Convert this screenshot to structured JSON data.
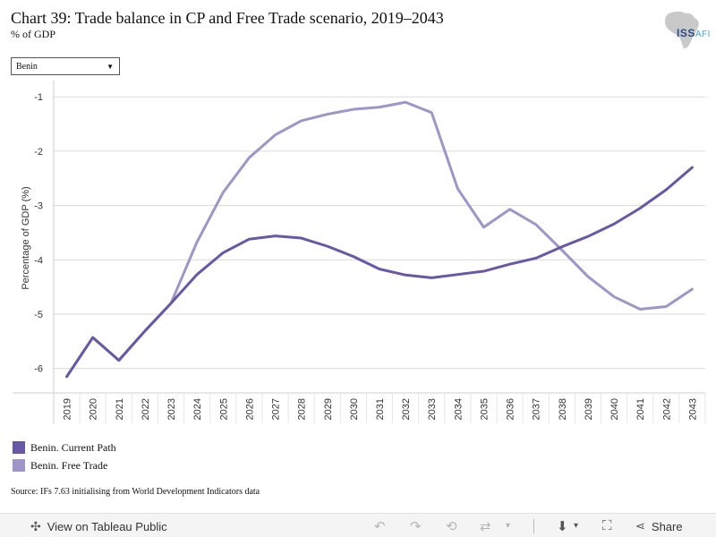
{
  "header": {
    "title": "Chart 39: Trade balance in CP and Free Trade scenario, 2019–2043",
    "subtitle": "% of GDP",
    "logo_text": "ISS",
    "logo_suffix": "AFI"
  },
  "filter": {
    "country_value": "Benin"
  },
  "colors": {
    "current_path": "#6a57a5",
    "free_trade": "#a095c8",
    "grid": "#d9d9d9"
  },
  "chart_data": {
    "type": "line",
    "title": "Chart 39: Trade balance in CP and Free Trade scenario, 2019–2043",
    "xlabel": "",
    "ylabel": "Percentage of GDP (%)",
    "ylim": [
      -6.45,
      -0.7
    ],
    "yticks": [
      -1,
      -2,
      -3,
      -4,
      -5,
      -6
    ],
    "grid": "horizontal",
    "legend_position": "bottom-left",
    "x": [
      "2019",
      "2020",
      "2021",
      "2022",
      "2023",
      "2024",
      "2025",
      "2026",
      "2027",
      "2028",
      "2029",
      "2030",
      "2031",
      "2032",
      "2033",
      "2034",
      "2035",
      "2036",
      "2037",
      "2038",
      "2039",
      "2040",
      "2041",
      "2042",
      "2043"
    ],
    "series": [
      {
        "name": "Benin. Current Path",
        "values": [
          -6.15,
          -5.43,
          -5.85,
          -5.31,
          -4.8,
          -4.27,
          -3.87,
          -3.62,
          -3.56,
          -3.6,
          -3.75,
          -3.94,
          -4.17,
          -4.28,
          -4.33,
          -4.27,
          -4.21,
          -4.08,
          -3.97,
          -3.76,
          -3.57,
          -3.34,
          -3.05,
          -2.71,
          -2.3
        ]
      },
      {
        "name": "Benin. Free Trade",
        "values": [
          -6.15,
          -5.43,
          -5.85,
          -5.31,
          -4.8,
          -3.67,
          -2.76,
          -2.12,
          -1.7,
          -1.44,
          -1.32,
          -1.23,
          -1.19,
          -1.1,
          -1.29,
          -2.69,
          -3.4,
          -3.07,
          -3.35,
          -3.82,
          -4.31,
          -4.68,
          -4.91,
          -4.86,
          -4.54
        ]
      }
    ]
  },
  "source": "Source: IFs 7.63 initialising from World Development Indicators data",
  "toolbar": {
    "view_label": "View on Tableau Public",
    "share_label": "Share"
  }
}
